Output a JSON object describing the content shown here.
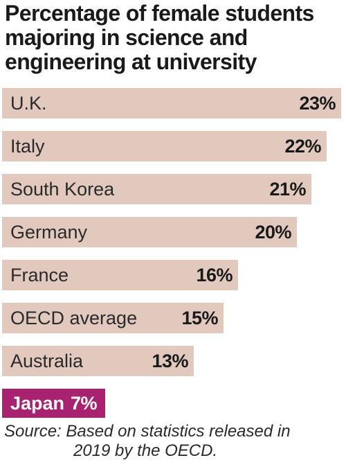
{
  "chart_data": {
    "type": "bar",
    "orientation": "horizontal",
    "title": "Percentage of female students\nmajoring in science and\nengineering at university",
    "categories": [
      "U.K.",
      "Italy",
      "South Korea",
      "Germany",
      "France",
      "OECD average",
      "Australia",
      "Japan"
    ],
    "values": [
      23,
      22,
      21,
      20,
      16,
      15,
      13,
      7
    ],
    "value_labels": [
      "23%",
      "22%",
      "21%",
      "20%",
      "16%",
      "15%",
      "13%",
      "7%"
    ],
    "highlight": "Japan",
    "colors": {
      "bar": "#e2c9bd",
      "highlight": "#a8226f",
      "text": "#1a1a1a"
    },
    "xlabel": "",
    "ylabel": "",
    "grid": false,
    "legend": false
  },
  "source": {
    "line1": "Source: Based on statistics released in",
    "line2": "2019 by the OECD."
  }
}
